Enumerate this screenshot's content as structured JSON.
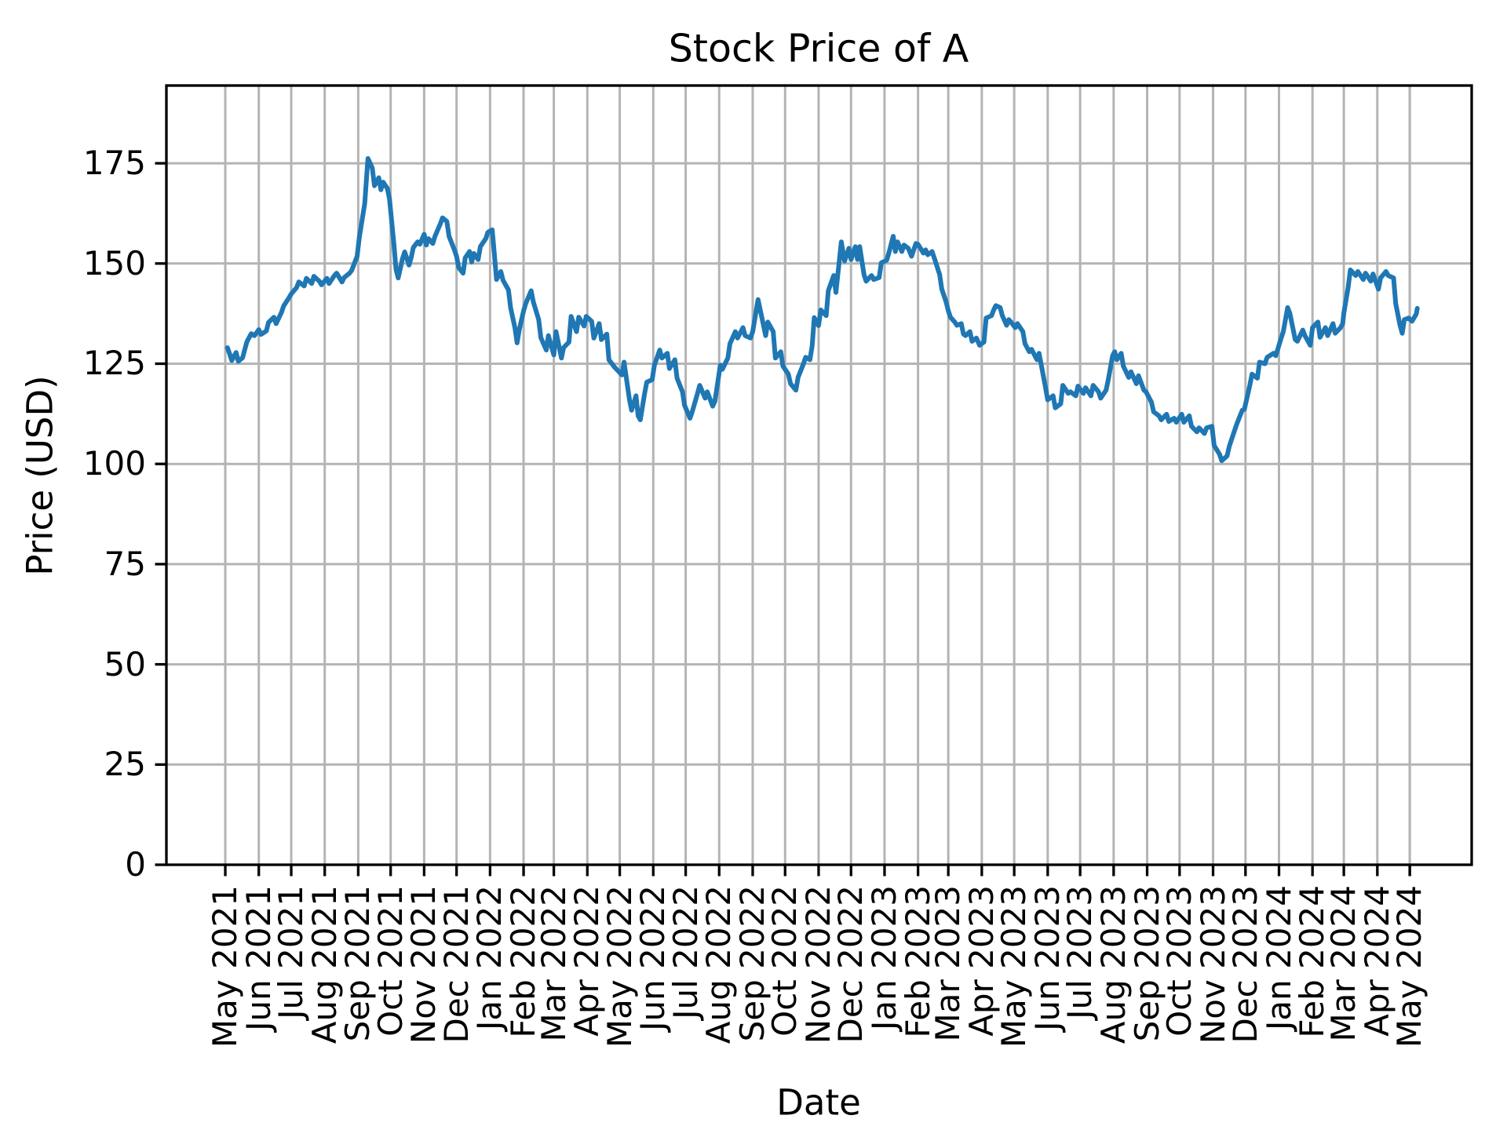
{
  "title": "Stock Price of A",
  "x_axis": {
    "label": "Date",
    "tick_labels": [
      "May 2021",
      "Jun 2021",
      "Jul 2021",
      "Aug 2021",
      "Sep 2021",
      "Oct 2021",
      "Nov 2021",
      "Dec 2021",
      "Jan 2022",
      "Feb 2022",
      "Mar 2022",
      "Apr 2022",
      "May 2022",
      "Jun 2022",
      "Jul 2022",
      "Aug 2022",
      "Sep 2022",
      "Oct 2022",
      "Nov 2022",
      "Dec 2022",
      "Jan 2023",
      "Feb 2023",
      "Mar 2023",
      "Apr 2023",
      "May 2023",
      "Jun 2023",
      "Jul 2023",
      "Aug 2023",
      "Sep 2023",
      "Oct 2023",
      "Nov 2023",
      "Dec 2023",
      "Jan 2024",
      "Feb 2024",
      "Mar 2024",
      "Apr 2024",
      "May 2024"
    ]
  },
  "y_axis": {
    "label": "Price (USD)",
    "tick_labels": [
      "0",
      "25",
      "50",
      "75",
      "100",
      "125",
      "150",
      "175"
    ]
  },
  "style": {
    "line_color": "#1f77b4",
    "grid_color": "#b4b4b4",
    "spine_color": "#000000",
    "background": "#ffffff"
  },
  "chart_data": {
    "type": "line",
    "title": "Stock Price of A",
    "xlabel": "Date",
    "ylabel": "Price (USD)",
    "grid": true,
    "legend_visible": false,
    "ylim": [
      0,
      194.4
    ],
    "y_ticks": [
      0,
      25,
      50,
      75,
      100,
      125,
      150,
      175
    ],
    "x_tick_months": "monthly May 2021 through May 2024",
    "series": [
      {
        "name": "A",
        "dates": [
          "2021-05-03",
          "2021-05-05",
          "2021-05-07",
          "2021-05-11",
          "2021-05-13",
          "2021-05-17",
          "2021-05-19",
          "2021-05-21",
          "2021-05-25",
          "2021-05-28",
          "2021-06-01",
          "2021-06-03",
          "2021-06-08",
          "2021-06-10",
          "2021-06-15",
          "2021-06-17",
          "2021-06-22",
          "2021-06-24",
          "2021-06-29",
          "2021-07-01",
          "2021-07-06",
          "2021-07-08",
          "2021-07-13",
          "2021-07-15",
          "2021-07-20",
          "2021-07-22",
          "2021-07-27",
          "2021-07-29",
          "2021-08-03",
          "2021-08-05",
          "2021-08-10",
          "2021-08-12",
          "2021-08-17",
          "2021-08-19",
          "2021-08-24",
          "2021-08-26",
          "2021-08-31",
          "2021-09-02",
          "2021-09-07",
          "2021-09-09",
          "2021-09-10",
          "2021-09-14",
          "2021-09-16",
          "2021-09-20",
          "2021-09-22",
          "2021-09-24",
          "2021-09-28",
          "2021-09-30",
          "2021-10-04",
          "2021-10-06",
          "2021-10-08",
          "2021-10-12",
          "2021-10-14",
          "2021-10-18",
          "2021-10-20",
          "2021-10-22",
          "2021-10-26",
          "2021-10-28",
          "2021-11-01",
          "2021-11-03",
          "2021-11-05",
          "2021-11-09",
          "2021-11-11",
          "2021-11-16",
          "2021-11-18",
          "2021-11-22",
          "2021-11-24",
          "2021-11-29",
          "2021-12-01",
          "2021-12-03",
          "2021-12-07",
          "2021-12-09",
          "2021-12-13",
          "2021-12-15",
          "2021-12-17",
          "2021-12-21",
          "2021-12-23",
          "2021-12-28",
          "2021-12-30",
          "2022-01-03",
          "2022-01-05",
          "2022-01-07",
          "2022-01-11",
          "2022-01-13",
          "2022-01-18",
          "2022-01-20",
          "2022-01-24",
          "2022-01-26",
          "2022-01-28",
          "2022-02-01",
          "2022-02-03",
          "2022-02-08",
          "2022-02-10",
          "2022-02-15",
          "2022-02-17",
          "2022-02-22",
          "2022-02-24",
          "2022-03-01",
          "2022-03-03",
          "2022-03-08",
          "2022-03-10",
          "2022-03-15",
          "2022-03-17",
          "2022-03-22",
          "2022-03-24",
          "2022-03-29",
          "2022-03-31",
          "2022-04-05",
          "2022-04-07",
          "2022-04-12",
          "2022-04-14",
          "2022-04-19",
          "2022-04-21",
          "2022-04-26",
          "2022-04-28",
          "2022-05-03",
          "2022-05-05",
          "2022-05-10",
          "2022-05-12",
          "2022-05-16",
          "2022-05-18",
          "2022-05-20",
          "2022-05-24",
          "2022-05-26",
          "2022-05-31",
          "2022-06-02",
          "2022-06-07",
          "2022-06-09",
          "2022-06-14",
          "2022-06-16",
          "2022-06-21",
          "2022-06-23",
          "2022-06-28",
          "2022-06-30",
          "2022-07-05",
          "2022-07-07",
          "2022-07-12",
          "2022-07-14",
          "2022-07-19",
          "2022-07-21",
          "2022-07-26",
          "2022-07-28",
          "2022-08-02",
          "2022-08-04",
          "2022-08-09",
          "2022-08-11",
          "2022-08-16",
          "2022-08-18",
          "2022-08-23",
          "2022-08-25",
          "2022-08-30",
          "2022-09-01",
          "2022-09-06",
          "2022-09-08",
          "2022-09-13",
          "2022-09-15",
          "2022-09-20",
          "2022-09-22",
          "2022-09-27",
          "2022-09-29",
          "2022-10-04",
          "2022-10-06",
          "2022-10-11",
          "2022-10-13",
          "2022-10-18",
          "2022-10-20",
          "2022-10-24",
          "2022-10-26",
          "2022-10-28",
          "2022-11-01",
          "2022-11-03",
          "2022-11-08",
          "2022-11-10",
          "2022-11-15",
          "2022-11-17",
          "2022-11-22",
          "2022-11-25",
          "2022-11-29",
          "2022-12-01",
          "2022-12-05",
          "2022-12-07",
          "2022-12-09",
          "2022-12-13",
          "2022-12-15",
          "2022-12-20",
          "2022-12-22",
          "2022-12-27",
          "2022-12-29",
          "2023-01-03",
          "2023-01-05",
          "2023-01-09",
          "2023-01-11",
          "2023-01-13",
          "2023-01-17",
          "2023-01-19",
          "2023-01-23",
          "2023-01-26",
          "2023-01-30",
          "2023-02-01",
          "2023-02-06",
          "2023-02-08",
          "2023-02-10",
          "2023-02-14",
          "2023-02-16",
          "2023-02-21",
          "2023-02-23",
          "2023-02-27",
          "2023-03-01",
          "2023-03-03",
          "2023-03-07",
          "2023-03-09",
          "2023-03-13",
          "2023-03-15",
          "2023-03-17",
          "2023-03-21",
          "2023-03-23",
          "2023-03-27",
          "2023-03-30",
          "2023-04-03",
          "2023-04-05",
          "2023-04-10",
          "2023-04-12",
          "2023-04-14",
          "2023-04-18",
          "2023-04-20",
          "2023-04-24",
          "2023-04-26",
          "2023-04-28",
          "2023-05-02",
          "2023-05-04",
          "2023-05-09",
          "2023-05-11",
          "2023-05-15",
          "2023-05-17",
          "2023-05-22",
          "2023-05-24",
          "2023-05-30",
          "2023-06-01",
          "2023-06-06",
          "2023-06-08",
          "2023-06-13",
          "2023-06-15",
          "2023-06-20",
          "2023-06-22",
          "2023-06-27",
          "2023-06-29",
          "2023-07-04",
          "2023-07-06",
          "2023-07-11",
          "2023-07-13",
          "2023-07-18",
          "2023-07-20",
          "2023-07-25",
          "2023-07-27",
          "2023-07-31",
          "2023-08-02",
          "2023-08-04",
          "2023-08-08",
          "2023-08-10",
          "2023-08-15",
          "2023-08-17",
          "2023-08-22",
          "2023-08-24",
          "2023-08-29",
          "2023-08-31",
          "2023-09-05",
          "2023-09-07",
          "2023-09-12",
          "2023-09-14",
          "2023-09-19",
          "2023-09-21",
          "2023-09-26",
          "2023-09-28",
          "2023-10-03",
          "2023-10-05",
          "2023-10-10",
          "2023-10-12",
          "2023-10-17",
          "2023-10-19",
          "2023-10-24",
          "2023-10-26",
          "2023-10-31",
          "2023-11-02",
          "2023-11-07",
          "2023-11-09",
          "2023-11-14",
          "2023-11-16",
          "2023-11-21",
          "2023-11-23",
          "2023-11-28",
          "2023-11-30",
          "2023-12-05",
          "2023-12-07",
          "2023-12-12",
          "2023-12-14",
          "2023-12-19",
          "2023-12-21",
          "2023-12-27",
          "2023-12-29",
          "2024-01-03",
          "2024-01-05",
          "2024-01-09",
          "2024-01-11",
          "2024-01-16",
          "2024-01-18",
          "2024-01-23",
          "2024-01-25",
          "2024-01-30",
          "2024-02-01",
          "2024-02-06",
          "2024-02-08",
          "2024-02-13",
          "2024-02-15",
          "2024-02-20",
          "2024-02-22",
          "2024-02-27",
          "2024-02-29",
          "2024-03-01",
          "2024-03-05",
          "2024-03-07",
          "2024-03-12",
          "2024-03-14",
          "2024-03-19",
          "2024-03-21",
          "2024-03-26",
          "2024-03-28",
          "2024-04-02",
          "2024-04-04",
          "2024-04-09",
          "2024-04-11",
          "2024-04-16",
          "2024-04-18",
          "2024-04-22",
          "2024-04-24",
          "2024-04-26",
          "2024-04-30",
          "2024-05-03",
          "2024-05-07",
          "2024-05-08"
        ],
        "values": [
          129.0,
          127.5,
          125.8,
          127.8,
          125.6,
          126.5,
          128.5,
          130.5,
          132.5,
          132.0,
          133.5,
          132.3,
          133.2,
          135.3,
          136.6,
          135.0,
          137.8,
          139.4,
          141.5,
          142.4,
          144.0,
          145.4,
          144.4,
          146.3,
          145.0,
          146.8,
          145.6,
          144.7,
          146.3,
          145.0,
          147.0,
          147.6,
          145.4,
          146.5,
          147.6,
          148.3,
          151.8,
          156.5,
          165.0,
          172.5,
          176.2,
          173.8,
          169.4,
          171.4,
          168.4,
          170.3,
          168.7,
          166.0,
          155.0,
          148.5,
          146.4,
          151.2,
          152.9,
          149.6,
          151.5,
          154.0,
          155.4,
          154.8,
          157.3,
          154.6,
          156.2,
          155.0,
          156.8,
          159.9,
          161.4,
          160.5,
          156.8,
          153.4,
          151.8,
          149.0,
          147.6,
          151.4,
          153.0,
          150.4,
          152.5,
          151.0,
          154.2,
          156.2,
          157.8,
          158.4,
          152.2,
          146.0,
          148.0,
          145.8,
          143.4,
          139.0,
          134.0,
          130.2,
          133.5,
          138.2,
          140.0,
          143.2,
          140.4,
          136.0,
          131.5,
          128.4,
          132.0,
          127.2,
          133.0,
          126.4,
          129.0,
          130.4,
          136.8,
          133.0,
          136.6,
          134.4,
          136.8,
          135.6,
          131.4,
          135.0,
          131.0,
          132.4,
          126.0,
          124.2,
          123.6,
          122.2,
          125.4,
          116.0,
          113.4,
          117.0,
          112.0,
          111.0,
          117.6,
          120.4,
          121.0,
          124.6,
          128.4,
          126.4,
          127.6,
          123.8,
          126.0,
          121.4,
          118.0,
          114.6,
          111.4,
          113.0,
          117.6,
          119.6,
          116.4,
          118.0,
          114.4,
          115.6,
          124.6,
          123.6,
          126.4,
          130.0,
          133.0,
          131.4,
          134.0,
          132.0,
          131.4,
          133.0,
          141.0,
          138.4,
          132.0,
          135.4,
          133.0,
          126.4,
          128.0,
          124.4,
          122.4,
          120.0,
          118.4,
          121.6,
          125.0,
          126.6,
          126.0,
          129.4,
          136.5,
          134.5,
          138.4,
          137.0,
          143.2,
          147.0,
          142.8,
          155.4,
          150.6,
          153.8,
          151.0,
          154.2,
          151.0,
          154.2,
          147.2,
          145.6,
          147.0,
          146.0,
          146.5,
          150.2,
          150.8,
          152.6,
          156.8,
          153.0,
          155.4,
          153.0,
          154.6,
          153.8,
          151.8,
          155.0,
          154.8,
          152.6,
          153.4,
          152.2,
          153.0,
          151.4,
          147.2,
          143.6,
          140.4,
          138.2,
          136.6,
          135.4,
          134.6,
          135.0,
          132.4,
          132.0,
          133.0,
          130.6,
          131.4,
          129.6,
          130.4,
          136.4,
          137.0,
          138.4,
          139.5,
          139.0,
          137.0,
          134.6,
          136.0,
          135.4,
          134.0,
          135.0,
          133.0,
          130.0,
          128.0,
          128.6,
          126.0,
          127.6,
          119.0,
          116.0,
          117.0,
          114.0,
          115.0,
          119.6,
          117.6,
          118.0,
          117.0,
          119.4,
          117.6,
          119.0,
          117.0,
          119.6,
          118.0,
          116.4,
          118.4,
          121.0,
          127.0,
          128.0,
          126.0,
          127.6,
          124.4,
          121.6,
          123.0,
          120.0,
          122.0,
          118.4,
          118.0,
          115.4,
          113.0,
          112.0,
          111.0,
          112.4,
          110.6,
          111.4,
          110.4,
          112.4,
          110.4,
          112.0,
          109.4,
          108.0,
          109.0,
          107.6,
          109.0,
          109.4,
          104.6,
          102.4,
          100.8,
          102.0,
          104.4,
          108.4,
          110.0,
          113.4,
          113.6,
          119.6,
          122.4,
          121.4,
          125.4,
          125.0,
          126.6,
          127.6,
          127.0,
          131.4,
          133.0,
          139.0,
          137.6,
          131.0,
          130.6,
          133.4,
          132.0,
          129.6,
          134.0,
          135.4,
          131.6,
          134.0,
          132.0,
          135.0,
          132.6,
          134.0,
          135.0,
          137.6,
          144.0,
          148.4,
          147.0,
          148.0,
          146.0,
          147.6,
          145.6,
          147.4,
          143.6,
          146.4,
          148.0,
          147.0,
          146.4,
          140.0,
          134.6,
          132.6,
          136.0,
          136.4,
          135.6,
          137.4,
          138.8
        ]
      }
    ]
  }
}
